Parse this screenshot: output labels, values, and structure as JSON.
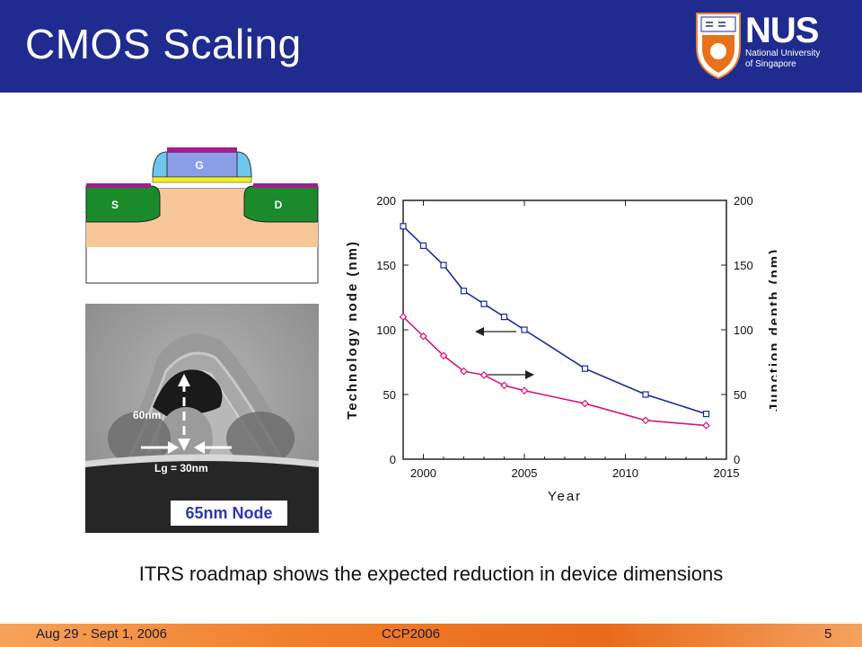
{
  "slide": {
    "title": "CMOS Scaling",
    "caption": "ITRS roadmap shows the expected reduction in device dimensions"
  },
  "logo": {
    "main": "NUS",
    "sub1": "National University",
    "sub2": "of Singapore"
  },
  "footer": {
    "date": "Aug 29 - Sept 1, 2006",
    "conference": "CCP2006",
    "page": "5"
  },
  "transistor_diagram": {
    "gate": "G",
    "source": "S",
    "drain": "D"
  },
  "micrograph": {
    "height_label": "60nm",
    "gate_length_label": "Lg = 30nm",
    "node_label": "65nm Node"
  },
  "chart_data": {
    "type": "line",
    "xlabel": "Year",
    "ylabel_left": "Technology node (nm)",
    "ylabel_right": "Junction depth (nm)",
    "xlim": [
      1999,
      2015
    ],
    "ylim": [
      0,
      200
    ],
    "x_ticks": [
      "2000",
      "2005",
      "2010",
      "2015"
    ],
    "y_ticks": [
      "0",
      "50",
      "100",
      "150",
      "200"
    ],
    "colors": {
      "tech_node": "#1a2a9a",
      "junction": "#d4177a"
    },
    "series": [
      {
        "x": [
          1999,
          2000,
          2001,
          2002,
          2003,
          2004,
          2005,
          2008,
          2011,
          2014
        ],
        "values": [
          180,
          165,
          150,
          130,
          120,
          110,
          100,
          70,
          50,
          35
        ]
      },
      {
        "x": [
          1999,
          2000,
          2001,
          2002,
          2003,
          2004,
          2005,
          2008,
          2011,
          2014
        ],
        "values": [
          110,
          95,
          80,
          68,
          65,
          57,
          53,
          43,
          30,
          26
        ]
      }
    ]
  }
}
